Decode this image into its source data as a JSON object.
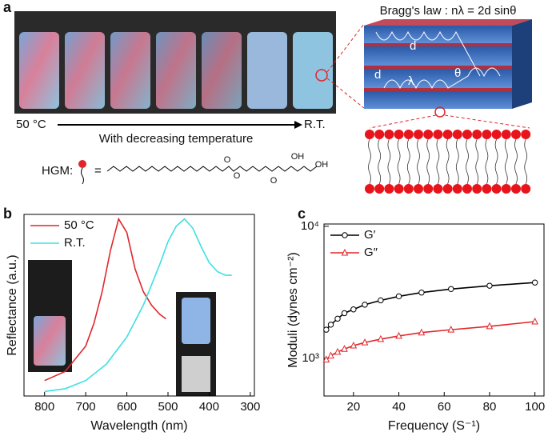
{
  "figure": {
    "panel_labels": [
      "a",
      "b",
      "c"
    ],
    "bragg_law": "Bragg's law : nλ = 2d sinθ",
    "temp_start": "50 °C",
    "temp_caption": "With decreasing temperature",
    "temp_end": "R.T.",
    "hgm_label": "HGM:",
    "equals": "=",
    "diagram_labels": [
      "d",
      "d",
      "λ",
      "θ"
    ],
    "structure_labels": [
      "O",
      "O",
      "O",
      "OH",
      "OH"
    ]
  },
  "chart_data": [
    {
      "type": "line",
      "xlabel": "Wavelength (nm)",
      "ylabel": "Reflectance (a.u.)",
      "xlim": [
        850,
        290
      ],
      "xticks": [
        800,
        700,
        600,
        500,
        400,
        300
      ],
      "ylim": [
        0,
        1
      ],
      "legend_loc": "upper left",
      "series": [
        {
          "name": "50 °C",
          "color": "#e0262b",
          "x": [
            800,
            750,
            700,
            680,
            660,
            640,
            620,
            600,
            580,
            560,
            540,
            520,
            505
          ],
          "values": [
            0.085,
            0.135,
            0.275,
            0.4,
            0.575,
            0.8,
            0.975,
            0.9,
            0.7,
            0.575,
            0.5,
            0.45,
            0.425
          ]
        },
        {
          "name": "R.T.",
          "color": "#3ee0e0",
          "x": [
            800,
            750,
            700,
            650,
            600,
            560,
            520,
            500,
            480,
            460,
            440,
            420,
            400,
            380,
            360,
            345
          ],
          "values": [
            0.025,
            0.04,
            0.085,
            0.175,
            0.325,
            0.5,
            0.725,
            0.85,
            0.935,
            0.975,
            0.925,
            0.825,
            0.735,
            0.685,
            0.665,
            0.665
          ]
        }
      ]
    },
    {
      "type": "line",
      "xlabel": "Frequency (S⁻¹)",
      "ylabel": "Moduli (dynes cm⁻²)",
      "xlim": [
        7,
        104
      ],
      "xticks": [
        20,
        40,
        60,
        80,
        100
      ],
      "yscale": "log",
      "ylim": [
        520,
        10400
      ],
      "yticks": [
        {
          "value": 1000,
          "label": "10³"
        },
        {
          "value": 10000,
          "label": "10⁴"
        }
      ],
      "legend_loc": "upper left",
      "x": [
        8,
        10,
        13,
        16,
        20,
        25,
        32,
        40,
        50,
        63,
        80,
        100
      ],
      "series": [
        {
          "name": "G′",
          "color": "#000000",
          "marker": "circle",
          "values": [
            1650,
            1800,
            2000,
            2200,
            2350,
            2550,
            2750,
            2950,
            3150,
            3350,
            3550,
            3750
          ]
        },
        {
          "name": "G″",
          "color": "#e0262b",
          "marker": "triangle",
          "values": [
            980,
            1050,
            1120,
            1180,
            1250,
            1320,
            1400,
            1480,
            1570,
            1650,
            1750,
            1900
          ]
        }
      ]
    }
  ]
}
